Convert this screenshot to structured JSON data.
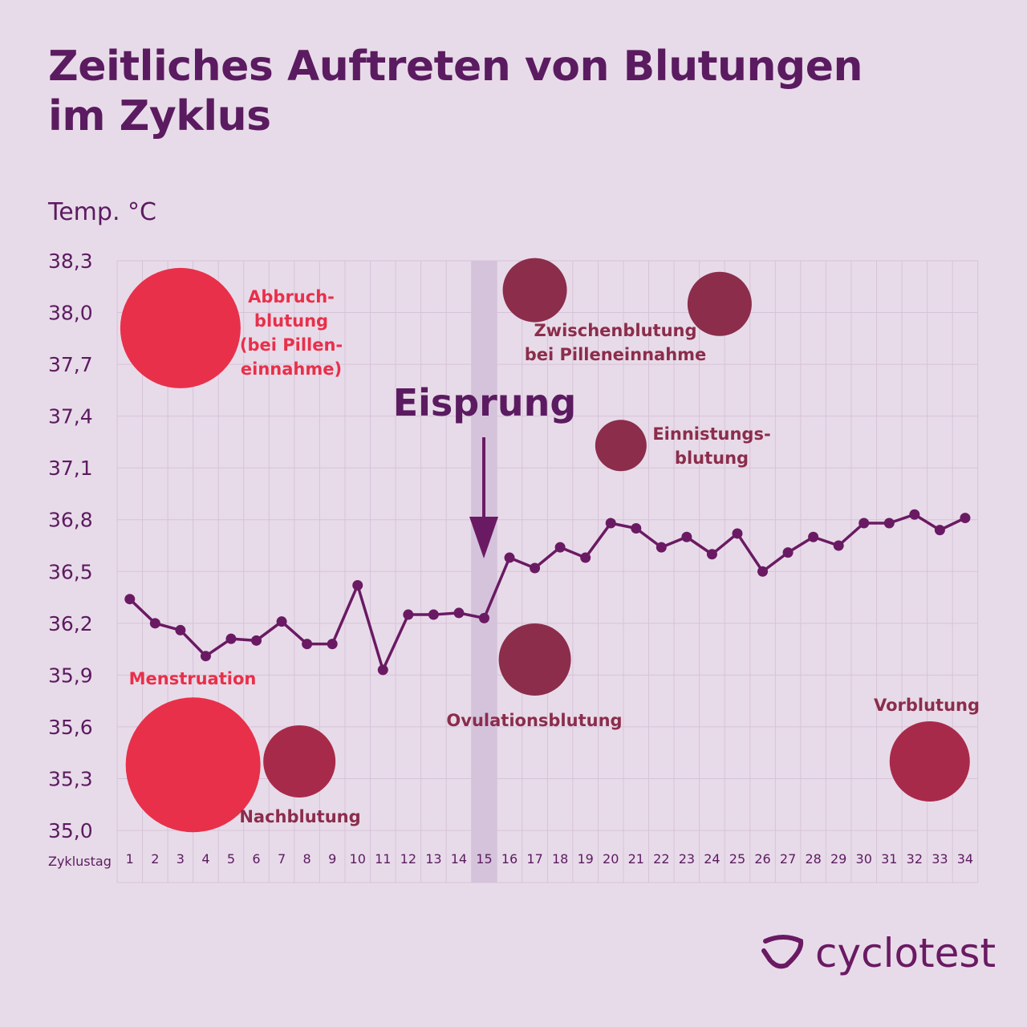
{
  "title": [
    "Zeitliches Auftreten von Blutungen",
    "im Zyklus"
  ],
  "brand": "cyclotest",
  "colors": {
    "background": "#e8dbe9",
    "title": "#5b1b60",
    "line": "#6a1a63",
    "grid": "#d6c3d8",
    "highlight_band": "#d5c3dc",
    "bright_red": "#e8304a",
    "maroon": "#8b2d4b",
    "crimson": "#a82a4a"
  },
  "chart_data": {
    "type": "line",
    "ylabel": "Temp. °C",
    "xlabel": "Zyklustag",
    "ylim": [
      35.0,
      38.3
    ],
    "yticks": [
      "38,3",
      "38,0",
      "37,7",
      "37,4",
      "37,1",
      "36,8",
      "36,5",
      "36,2",
      "35,9",
      "35,6",
      "35,3",
      "35,0"
    ],
    "x": [
      1,
      2,
      3,
      4,
      5,
      6,
      7,
      8,
      9,
      10,
      11,
      12,
      13,
      14,
      15,
      16,
      17,
      18,
      19,
      20,
      21,
      22,
      23,
      24,
      25,
      26,
      27,
      28,
      29,
      30,
      31,
      32,
      33,
      34
    ],
    "values": [
      36.34,
      36.2,
      36.16,
      36.01,
      36.11,
      36.1,
      36.21,
      36.08,
      36.08,
      36.42,
      35.93,
      36.25,
      36.25,
      36.26,
      36.23,
      36.58,
      36.52,
      36.64,
      36.58,
      36.78,
      36.75,
      36.64,
      36.7,
      36.6,
      36.72,
      36.5,
      36.61,
      36.7,
      36.65,
      36.78,
      36.78,
      36.83,
      36.74,
      36.81
    ],
    "grid": true,
    "highlight": {
      "day": 15,
      "label": "Eisprung"
    },
    "annotations": [
      {
        "label": [
          "Abbruch-",
          "blutung",
          "(bei Pillen-",
          "einnahme)"
        ],
        "day": 3,
        "temp": 37.91,
        "color": "bright_red"
      },
      {
        "label": [
          "Menstruation"
        ],
        "day": 3.5,
        "temp": 35.38,
        "color": "bright_red"
      },
      {
        "label": [
          "Nachblutung"
        ],
        "day": 7.7,
        "temp": 35.4,
        "color": "crimson"
      },
      {
        "label": [
          "Zwischenblutung",
          "bei Pilleneinnahme"
        ],
        "day": 17,
        "temp": 38.13,
        "color": "maroon"
      },
      {
        "label": [],
        "day": 24.3,
        "temp": 38.05,
        "color": "maroon"
      },
      {
        "label": [
          "Einnistungs-",
          "blutung"
        ],
        "day": 20.4,
        "temp": 37.23,
        "color": "maroon"
      },
      {
        "label": [
          "Ovulationsblutung"
        ],
        "day": 17,
        "temp": 35.99,
        "color": "maroon"
      },
      {
        "label": [
          "Vorblutung"
        ],
        "day": 32.6,
        "temp": 35.4,
        "color": "crimson"
      }
    ]
  }
}
